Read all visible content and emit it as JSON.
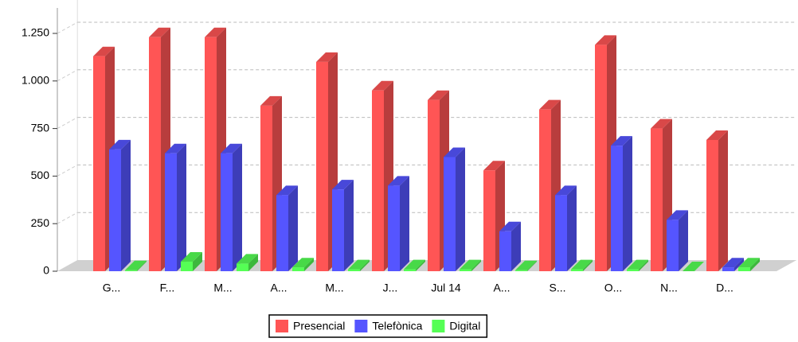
{
  "chart_data": {
    "type": "bar3d",
    "categories": [
      "G...",
      "F...",
      "M...",
      "A...",
      "M...",
      "J...",
      "Jul 14",
      "A...",
      "S...",
      "O...",
      "N...",
      "D..."
    ],
    "series": [
      {
        "name": "Presencial",
        "color": "#ff5555",
        "values": [
          1130,
          1230,
          1230,
          870,
          1100,
          950,
          900,
          530,
          850,
          1190,
          750,
          690
        ]
      },
      {
        "name": "Telefònica",
        "color": "#5555ff",
        "values": [
          640,
          620,
          620,
          400,
          430,
          450,
          600,
          210,
          400,
          660,
          270,
          20
        ]
      },
      {
        "name": "Digital",
        "color": "#55ff55",
        "values": [
          5,
          50,
          40,
          20,
          10,
          10,
          10,
          5,
          10,
          10,
          0,
          20
        ]
      }
    ],
    "ylim": [
      0,
      1300
    ],
    "yticks": [
      0,
      250,
      500,
      750,
      {
        "value": 1000,
        "label": "1.000"
      },
      {
        "value": 1250,
        "label": "1.250"
      }
    ],
    "grid": true,
    "legend": "bottom"
  }
}
